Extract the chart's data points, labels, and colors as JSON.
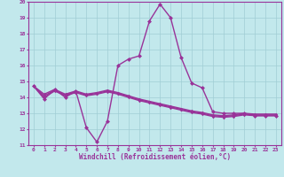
{
  "xlabel": "Windchill (Refroidissement éolien,°C)",
  "xlim": [
    -0.5,
    23.5
  ],
  "ylim": [
    11,
    20
  ],
  "xticks": [
    0,
    1,
    2,
    3,
    4,
    5,
    6,
    7,
    8,
    9,
    10,
    11,
    12,
    13,
    14,
    15,
    16,
    17,
    18,
    19,
    20,
    21,
    22,
    23
  ],
  "yticks": [
    11,
    12,
    13,
    14,
    15,
    16,
    17,
    18,
    19,
    20
  ],
  "bg_color": "#c2e8ec",
  "grid_color": "#a0cdd4",
  "line_color": "#993399",
  "series0": [
    14.7,
    13.9,
    14.5,
    14.0,
    14.4,
    12.1,
    11.2,
    12.5,
    16.0,
    16.4,
    16.6,
    18.8,
    19.85,
    19.0,
    16.5,
    14.9,
    14.6,
    13.1,
    13.0,
    13.0,
    13.0,
    12.85,
    12.85,
    12.85
  ],
  "series1": [
    14.7,
    14.0,
    14.4,
    14.1,
    14.3,
    14.1,
    14.2,
    14.35,
    14.2,
    14.0,
    13.8,
    13.65,
    13.5,
    13.35,
    13.2,
    13.05,
    12.95,
    12.8,
    12.75,
    12.8,
    12.9,
    12.85,
    12.85,
    12.85
  ],
  "series2": [
    14.7,
    14.1,
    14.45,
    14.15,
    14.35,
    14.15,
    14.25,
    14.4,
    14.25,
    14.05,
    13.85,
    13.7,
    13.55,
    13.4,
    13.25,
    13.1,
    13.0,
    12.85,
    12.8,
    12.85,
    12.95,
    12.9,
    12.9,
    12.9
  ],
  "series3": [
    14.7,
    14.2,
    14.5,
    14.2,
    14.4,
    14.2,
    14.3,
    14.45,
    14.3,
    14.1,
    13.9,
    13.75,
    13.6,
    13.45,
    13.3,
    13.15,
    13.05,
    12.9,
    12.85,
    12.9,
    13.0,
    12.95,
    12.95,
    12.95
  ],
  "marker_size": 2.5,
  "line_width": 1.0
}
